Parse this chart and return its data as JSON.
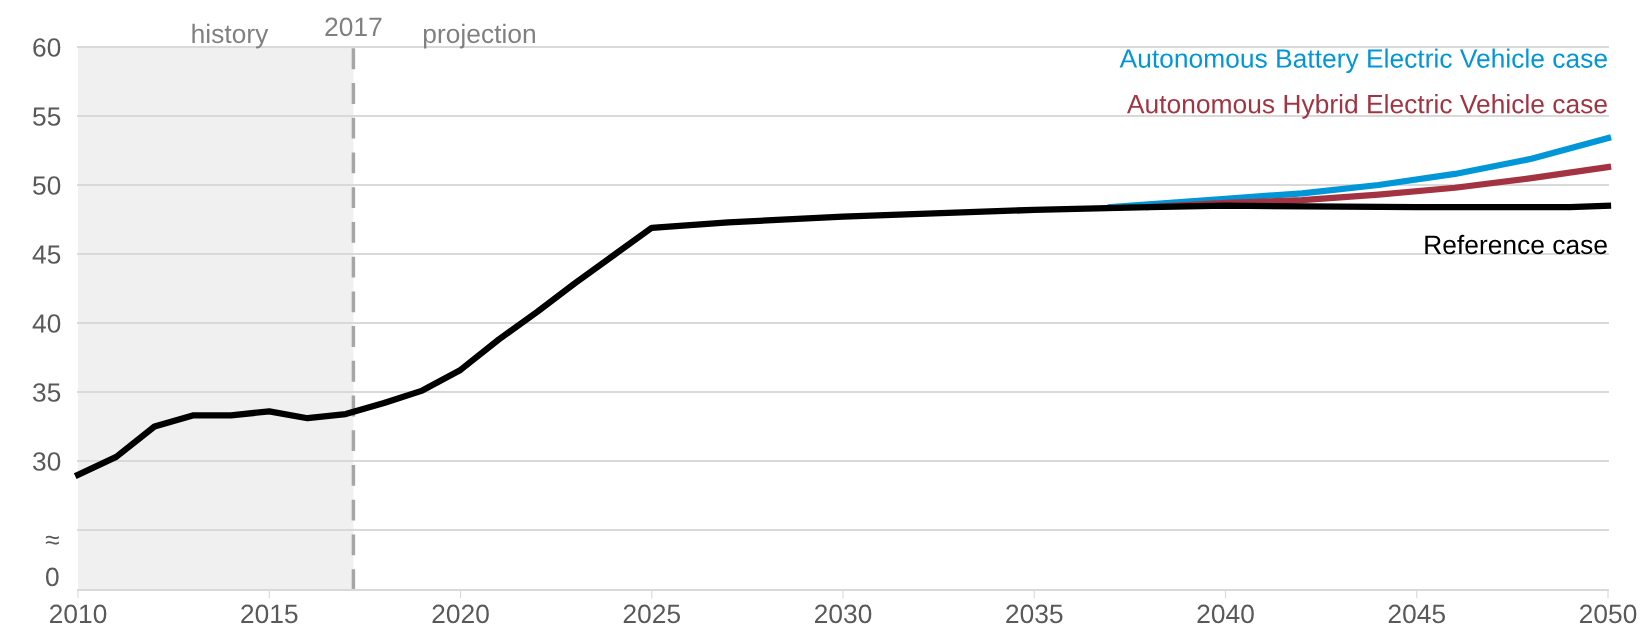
{
  "chart_data": {
    "type": "line",
    "xlim": [
      2010,
      2050
    ],
    "xticks": [
      2010,
      2015,
      2020,
      2025,
      2030,
      2035,
      2040,
      2045,
      2050
    ],
    "ylim": [
      25,
      60
    ],
    "yticks": [
      {
        "value": 25,
        "label": null
      },
      30,
      35,
      40,
      45,
      50,
      55,
      60
    ],
    "grid": "y",
    "legend": false,
    "line_style": "solid",
    "marker": "none",
    "bands": [
      {
        "axis": "x",
        "from": 2010,
        "to": 2017.2,
        "label": "history",
        "color": "#f0f0f0"
      }
    ],
    "ref_lines": [
      {
        "axis": "x",
        "value": 2017.2,
        "label": "2017",
        "color": "#a6a6a6",
        "line_style": "dashed"
      }
    ],
    "annotations": [
      "projection",
      "≈",
      "0"
    ],
    "series": [
      {
        "name": "Autonomous Battery Electric Vehicle case",
        "color": "#0096d7",
        "x": [
          2037,
          2040,
          2042,
          2044,
          2046,
          2048,
          2050
        ],
        "values": [
          48.4,
          49.0,
          49.4,
          50.0,
          50.8,
          51.9,
          53.4
        ]
      },
      {
        "name": "Autonomous Hybrid Electric Vehicle case",
        "color": "#a33340",
        "x": [
          2038,
          2040,
          2042,
          2044,
          2046,
          2048,
          2050
        ],
        "values": [
          48.4,
          48.7,
          48.9,
          49.3,
          49.8,
          50.5,
          51.3
        ]
      },
      {
        "name": "Reference case",
        "color": "#000000",
        "x": [
          2010,
          2011,
          2012,
          2013,
          2014,
          2015,
          2016,
          2017,
          2018,
          2019,
          2020,
          2021,
          2022,
          2023,
          2024,
          2025,
          2027,
          2030,
          2035,
          2038,
          2040,
          2045,
          2049,
          2050
        ],
        "values": [
          29.0,
          30.3,
          32.5,
          33.3,
          33.3,
          33.6,
          33.1,
          33.4,
          34.2,
          35.1,
          36.6,
          38.8,
          40.8,
          42.9,
          44.9,
          46.9,
          47.3,
          47.7,
          48.2,
          48.4,
          48.5,
          48.4,
          48.4,
          48.5
        ]
      }
    ]
  }
}
